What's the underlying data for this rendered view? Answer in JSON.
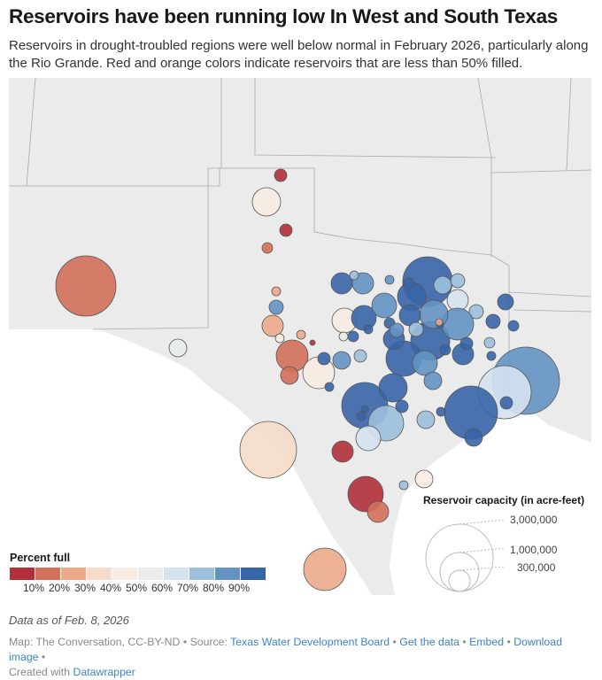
{
  "header": {
    "title": "Reservoirs have been running low In West and South Texas",
    "description": "Reservoirs in drought-troubled regions were well below normal in February 2026, particularly along the Rio Grande. Red and orange colors indicate reservoirs that are less than 50% filled."
  },
  "legend_percent": {
    "title": "Percent full",
    "colors": [
      "#b2303a",
      "#d2705a",
      "#eba98a",
      "#f6dcc8",
      "#f8ece2",
      "#e8ede9",
      "#d5e3ef",
      "#9cc0dc",
      "#6393c3",
      "#3765a8"
    ],
    "labels": [
      "10%",
      "20%",
      "30%",
      "40%",
      "50%",
      "60%",
      "70%",
      "80%",
      "90%"
    ]
  },
  "legend_capacity": {
    "title": "Reservoir capacity (in acre-feet)",
    "labels": [
      "3,000,000",
      "1,000,000",
      "300,000"
    ]
  },
  "note": "Data as of Feb. 8, 2026",
  "footer": {
    "credit": "Map: The Conversation, CC-BY-ND",
    "source_label": "Source:",
    "source_link": "Texas Water Development Board",
    "get_data": "Get the data",
    "embed": "Embed",
    "download": "Download image",
    "created_with": "Created with",
    "datawrapper": "Datawrapper"
  }
}
